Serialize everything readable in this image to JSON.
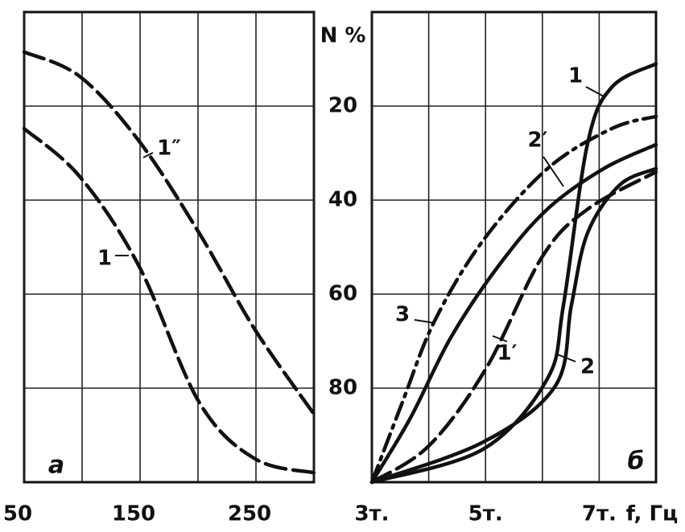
{
  "chart_data": [
    {
      "type": "line",
      "panel_label": "а",
      "xlim": [
        50,
        300
      ],
      "xticks": [
        50,
        150,
        250
      ],
      "xgrid": [
        100,
        200,
        300
      ],
      "ylim": [
        100,
        0
      ],
      "series": [
        {
          "name": "1″",
          "color": "#111",
          "dash": "dashed",
          "x": [
            50,
            98,
            149,
            201,
            249,
            300
          ],
          "values": [
            8.5,
            13.7,
            27.4,
            47,
            67.5,
            85.5
          ]
        },
        {
          "name": "1",
          "color": "#111",
          "dash": "dashed",
          "x": [
            50,
            98,
            149,
            201,
            249,
            300
          ],
          "values": [
            24.8,
            35,
            54,
            83,
            95,
            98
          ]
        }
      ]
    },
    {
      "type": "line",
      "panel_label": "б",
      "ylabel": "N %",
      "xlabel": "f, Гц",
      "xlim": [
        3000,
        8000
      ],
      "xticks": [
        {
          "value": 3000,
          "label": "3т."
        },
        {
          "value": 5000,
          "label": "5т."
        },
        {
          "value": 7000,
          "label": "7т."
        }
      ],
      "xgrid": [
        4000,
        6000
      ],
      "ylim": [
        100,
        0
      ],
      "yticks": [
        20,
        40,
        60,
        80
      ],
      "series": [
        {
          "name": "1",
          "color": "#111",
          "dash": "solid",
          "x": [
            3000,
            4955,
            6088,
            6370,
            6795,
            7220,
            8000
          ],
          "values": [
            100,
            93,
            78,
            62.4,
            28,
            16,
            11
          ]
        },
        {
          "name": "2",
          "color": "#111",
          "dash": "solid",
          "x": [
            3000,
            4955,
            6230,
            6510,
            6795,
            7360,
            8000
          ],
          "values": [
            100,
            91.5,
            79.5,
            62.4,
            47,
            36.8,
            33.3
          ]
        },
        {
          "name": "1′",
          "color": "#111",
          "dash": "dashed",
          "x": [
            3000,
            4000,
            5000,
            6000,
            6800,
            8000
          ],
          "values": [
            100,
            92.3,
            76,
            52,
            41.9,
            34
          ]
        },
        {
          "name": "2′",
          "color": "#111",
          "dash": "solid",
          "x": [
            3000,
            3680,
            4390,
            5240,
            6090,
            7080,
            8000
          ],
          "values": [
            100,
            86.3,
            69.2,
            53.8,
            41.9,
            33.3,
            28.2
          ]
        },
        {
          "name": "3",
          "color": "#111",
          "dash": "dashdot",
          "x": [
            3000,
            3540,
            4100,
            4950,
            6090,
            7220,
            8000
          ],
          "values": [
            100,
            82.9,
            65.8,
            48.7,
            33.3,
            24.8,
            22.2
          ]
        }
      ]
    }
  ]
}
